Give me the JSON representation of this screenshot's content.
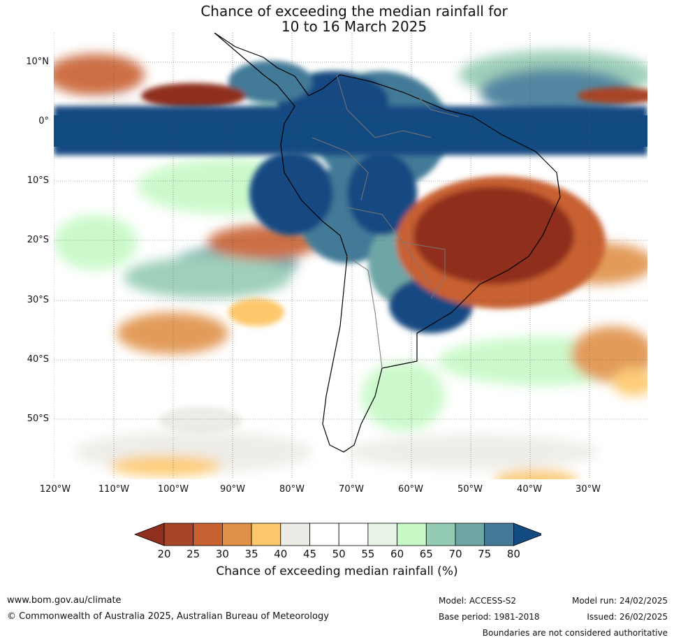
{
  "title": {
    "line1": "Chance of exceeding the median rainfall for",
    "line2": "10 to 16 March 2025"
  },
  "map": {
    "latitude_labels": [
      "10°N",
      "0°",
      "10°S",
      "20°S",
      "30°S",
      "40°S",
      "50°S"
    ],
    "longitude_labels": [
      "120°W",
      "110°W",
      "100°W",
      "90°W",
      "80°W",
      "70°W",
      "60°W",
      "50°W",
      "40°W",
      "30°W"
    ]
  },
  "legend": {
    "ticks": [
      "20",
      "25",
      "30",
      "35",
      "40",
      "45",
      "50",
      "55",
      "60",
      "65",
      "70",
      "75",
      "80"
    ],
    "colors": [
      "#8f2f1d",
      "#a84528",
      "#c86131",
      "#e09148",
      "#fdc86c",
      "#ecebe6",
      "#ffffff",
      "#ffffff",
      "#e8f5e6",
      "#c6f9c6",
      "#94cbb4",
      "#6ea6a6",
      "#427a98",
      "#124a82"
    ],
    "label": "Chance of exceeding median rainfall (%)"
  },
  "footer": {
    "url": "www.bom.gov.au/climate",
    "copyright": "© Commonwealth of Australia 2025, Australian Bureau of Meteorology",
    "model": "Model: ACCESS-S2",
    "base_period": "Base period: 1981-2018",
    "model_run": "Model run: 24/02/2025",
    "issued": "Issued: 26/02/2025",
    "disclaimer": "Boundaries are not considered authoritative"
  }
}
